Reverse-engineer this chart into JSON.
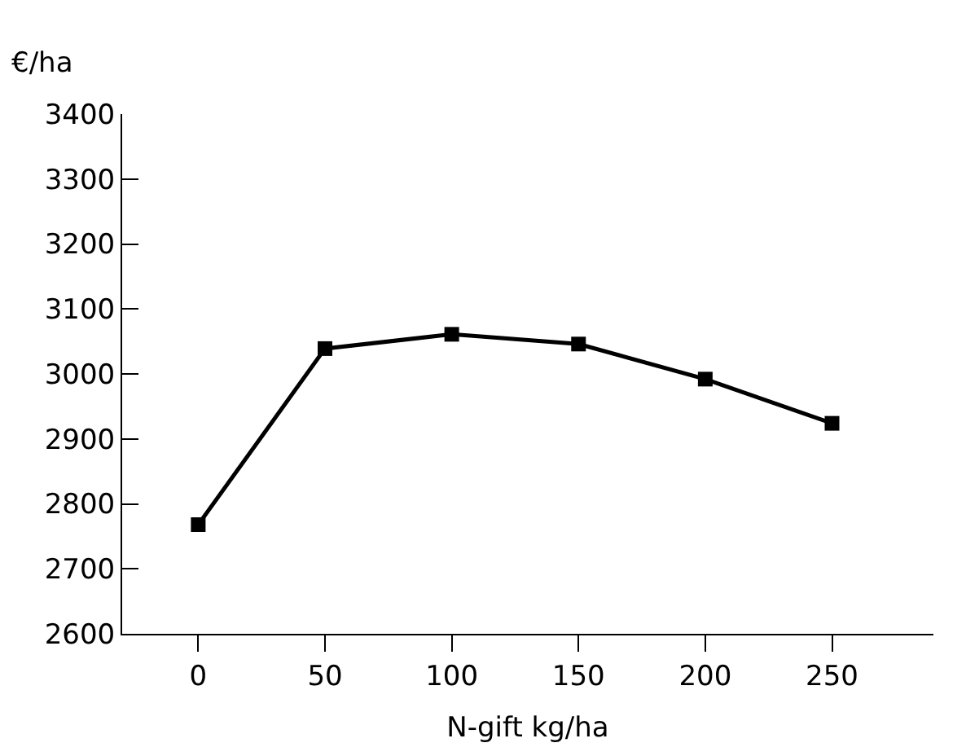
{
  "chart_data": {
    "type": "line",
    "xlabel": "N-gift kg/ha",
    "ylabel": "€/ha",
    "x": [
      0,
      50,
      100,
      150,
      200,
      250
    ],
    "series": [
      {
        "color": "#000000",
        "values": [
          2768,
          3039,
          3061,
          3046,
          2992,
          2924
        ]
      }
    ],
    "xlim": [
      -30,
      290
    ],
    "xticks": [
      0,
      50,
      100,
      150,
      200,
      250
    ],
    "ylim": [
      2600,
      3400
    ],
    "yticks": [
      2600,
      2700,
      2800,
      2900,
      3000,
      3100,
      3200,
      3300,
      3400
    ],
    "legend": false,
    "marker": "square",
    "line_style": "solid"
  }
}
